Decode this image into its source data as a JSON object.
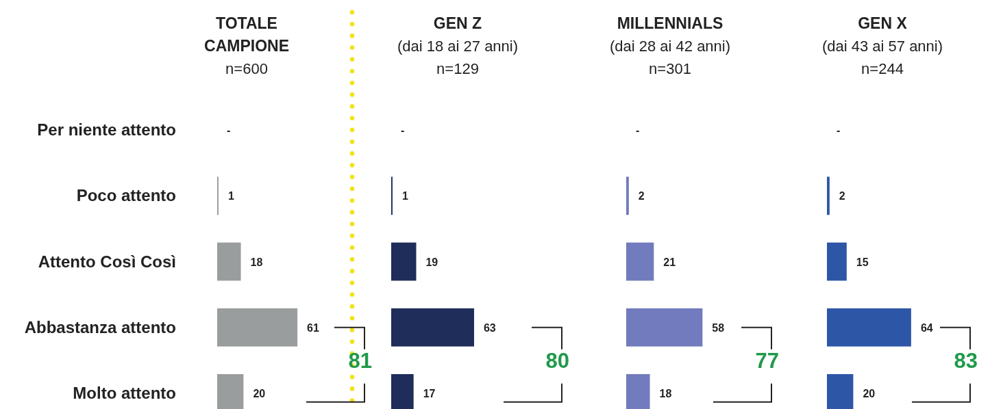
{
  "chart_data": [
    {
      "type": "bar",
      "orientation": "horizontal",
      "title": "TOTALE\nCAMPIONE",
      "subtitle": "n=600",
      "categories": [
        "Per niente attento",
        "Poco attento",
        "Attento Così Così",
        "Abbastanza attento",
        "Molto attento"
      ],
      "values": [
        null,
        1,
        18,
        61,
        20
      ],
      "value_labels": [
        "-",
        "1",
        "18",
        "61",
        "20"
      ],
      "color": "#9a9d9d",
      "tick_labels": "y",
      "annotations": [
        "81"
      ]
    },
    {
      "type": "bar",
      "orientation": "horizontal",
      "title": "GEN Z",
      "subtitle": "(dai 18 ai 27 anni)\nn=129",
      "categories": [
        null,
        null,
        null,
        null,
        null
      ],
      "values": [
        null,
        1,
        19,
        63,
        17
      ],
      "value_labels": [
        "-",
        "1",
        "19",
        "63",
        "17"
      ],
      "color": "#1f2d5a",
      "tick_labels": false,
      "annotations": [
        "80"
      ]
    },
    {
      "type": "bar",
      "orientation": "horizontal",
      "title": "MILLENNIALS",
      "subtitle": "(dai 28 ai 42 anni)\nn=301",
      "categories": [
        null,
        null,
        null,
        null,
        null
      ],
      "values": [
        null,
        2,
        21,
        58,
        18
      ],
      "value_labels": [
        "-",
        "2",
        "21",
        "58",
        "18"
      ],
      "color": "#717bbd",
      "tick_labels": false,
      "annotations": [
        "77"
      ]
    },
    {
      "type": "bar",
      "orientation": "horizontal",
      "title": "GEN X",
      "subtitle": "(dai 43 ai 57 anni)\nn=244",
      "categories": [
        null,
        null,
        null,
        null,
        null
      ],
      "values": [
        null,
        2,
        15,
        64,
        20
      ],
      "value_labels": [
        "-",
        "2",
        "15",
        "64",
        "20"
      ],
      "color": "#2d56a6",
      "tick_labels": false,
      "annotations": [
        "83"
      ]
    }
  ]
}
